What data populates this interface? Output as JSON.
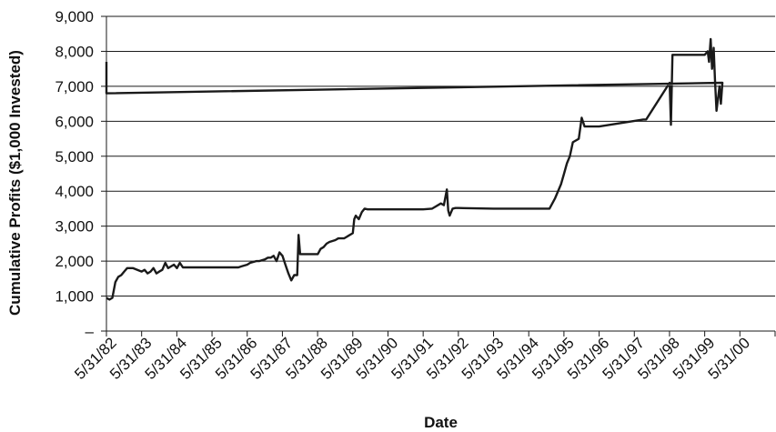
{
  "chart_data": {
    "type": "line",
    "title": "",
    "xlabel": "Date",
    "ylabel": "Cumulative Profits ($1,000 Invested)",
    "x_ticks": [
      "5/31/82",
      "5/31/83",
      "5/31/84",
      "5/31/85",
      "5/31/86",
      "5/31/87",
      "5/31/88",
      "5/31/89",
      "5/31/90",
      "5/31/91",
      "5/31/92",
      "5/31/93",
      "5/31/94",
      "5/31/95",
      "5/31/96",
      "5/31/97",
      "5/31/98",
      "5/31/99",
      "5/31/00"
    ],
    "y_ticks": [
      {
        "value": 0,
        "label": "–"
      },
      {
        "value": 1000,
        "label": "1,000"
      },
      {
        "value": 2000,
        "label": "2,000"
      },
      {
        "value": 3000,
        "label": "3,000"
      },
      {
        "value": 4000,
        "label": "4,000"
      },
      {
        "value": 5000,
        "label": "5,000"
      },
      {
        "value": 6000,
        "label": "6,000"
      },
      {
        "value": 7000,
        "label": "7,000"
      },
      {
        "value": 8000,
        "label": "8,000"
      },
      {
        "value": 9000,
        "label": "9,000"
      }
    ],
    "ylim": [
      0,
      9000
    ],
    "xlim": [
      "5/31/82",
      "5/31/00"
    ],
    "grid": "horizontal",
    "line_color": "#1a1a1a",
    "series": [
      {
        "x": [
          "5/31/82",
          "6/30/82",
          "7/31/82",
          "9/1/82",
          "10/1/82",
          "11/1/82",
          "12/1/82",
          "1/1/83",
          "2/1/83",
          "3/1/83",
          "5/31/83",
          "7/1/83",
          "8/1/83",
          "9/1/83",
          "10/1/83",
          "11/1/83",
          "12/1/83",
          "1/1/84",
          "2/1/84",
          "3/1/84",
          "5/1/84",
          "6/1/84",
          "7/1/84",
          "8/1/84",
          "5/31/85",
          "3/1/86",
          "4/1/86",
          "6/1/86",
          "7/1/86",
          "9/1/86",
          "10/1/86",
          "12/1/86",
          "1/1/87",
          "2/1/87",
          "3/1/87",
          "4/1/87",
          "5/1/87",
          "6/1/87",
          "7/1/87",
          "8/1/87",
          "9/1/87",
          "10/1/87",
          "11/1/87",
          "11/15/87",
          "12/1/87",
          "12/15/87",
          "12/20/87",
          "1/1/88",
          "6/1/88",
          "7/1/88",
          "8/1/88",
          "9/1/88",
          "10/1/88",
          "12/1/88",
          "1/1/89",
          "3/1/89",
          "5/31/89",
          "6/15/89",
          "7/1/89",
          "8/1/89",
          "9/1/89",
          "10/1/89",
          "11/1/89",
          "12/1/89",
          "1/1/90",
          "6/1/90",
          "9/1/90",
          "5/31/91",
          "9/1/91",
          "10/1/91",
          "12/1/91",
          "1/1/92",
          "2/1/92",
          "2/15/92",
          "3/1/92",
          "4/1/92",
          "5/1/92",
          "5/31/92",
          "5/31/93",
          "9/1/94",
          "1/1/95",
          "3/1/95",
          "5/1/95",
          "6/1/95",
          "7/1/95",
          "8/1/95",
          "9/1/95",
          "11/1/95",
          "12/1/95",
          "1/1/96",
          "2/1/96",
          "3/1/96",
          "5/31/96",
          "9/1/97",
          "10/1/97",
          "6/1/98",
          "6/15/98",
          "7/1/98",
          "7/15/98",
          "8/1/98",
          "8/15/98",
          "9/1/98",
          "5/31/99",
          "6/15/99",
          "7/1/99",
          "7/15/99",
          "8/1/99",
          "8/15/99",
          "9/1/99",
          "9/15/99",
          "10/1/99",
          "11/1/99",
          "11/15/99",
          "12/1/99",
          "1/1/00",
          "1/15/00",
          "2/1/00",
          "3/1/00",
          "4/1/00",
          "5/31/00",
          "6/30/00",
          "8/1/00",
          "9/30/00"
        ],
        "y": [
          950,
          900,
          950,
          1400,
          1550,
          1600,
          1700,
          1800,
          1800,
          1800,
          1700,
          1750,
          1650,
          1700,
          1800,
          1650,
          1700,
          1750,
          1950,
          1800,
          1900,
          1800,
          1950,
          1820,
          1820,
          1820,
          1850,
          1900,
          1950,
          2000,
          2000,
          2050,
          2100,
          2100,
          2150,
          2000,
          2250,
          2150,
          1900,
          1650,
          1450,
          1600,
          1600,
          2750,
          2200,
          2200,
          2200,
          2200,
          2200,
          2350,
          2400,
          2500,
          2550,
          2600,
          2650,
          2650,
          2800,
          3200,
          3300,
          3200,
          3400,
          3500,
          3480,
          3480,
          3480,
          3480,
          3480,
          3480,
          3500,
          3550,
          3650,
          3600,
          4050,
          3450,
          3300,
          3500,
          3520,
          3520,
          3500,
          3500,
          3500,
          3800,
          4200,
          4500,
          4800,
          5000,
          5400,
          5500,
          6100,
          5850,
          5850,
          5850,
          5850,
          6050,
          6050,
          7100,
          5900,
          7900,
          7900,
          7900,
          7900,
          7900,
          7900,
          7950,
          8000,
          7700,
          8350,
          7500,
          8100,
          7200,
          6300,
          7000,
          6500,
          7100,
          6800,
          7000,
          7000,
          7700,
          7700,
          7700,
          7700,
          7700,
          7700
        ]
      }
    ]
  }
}
